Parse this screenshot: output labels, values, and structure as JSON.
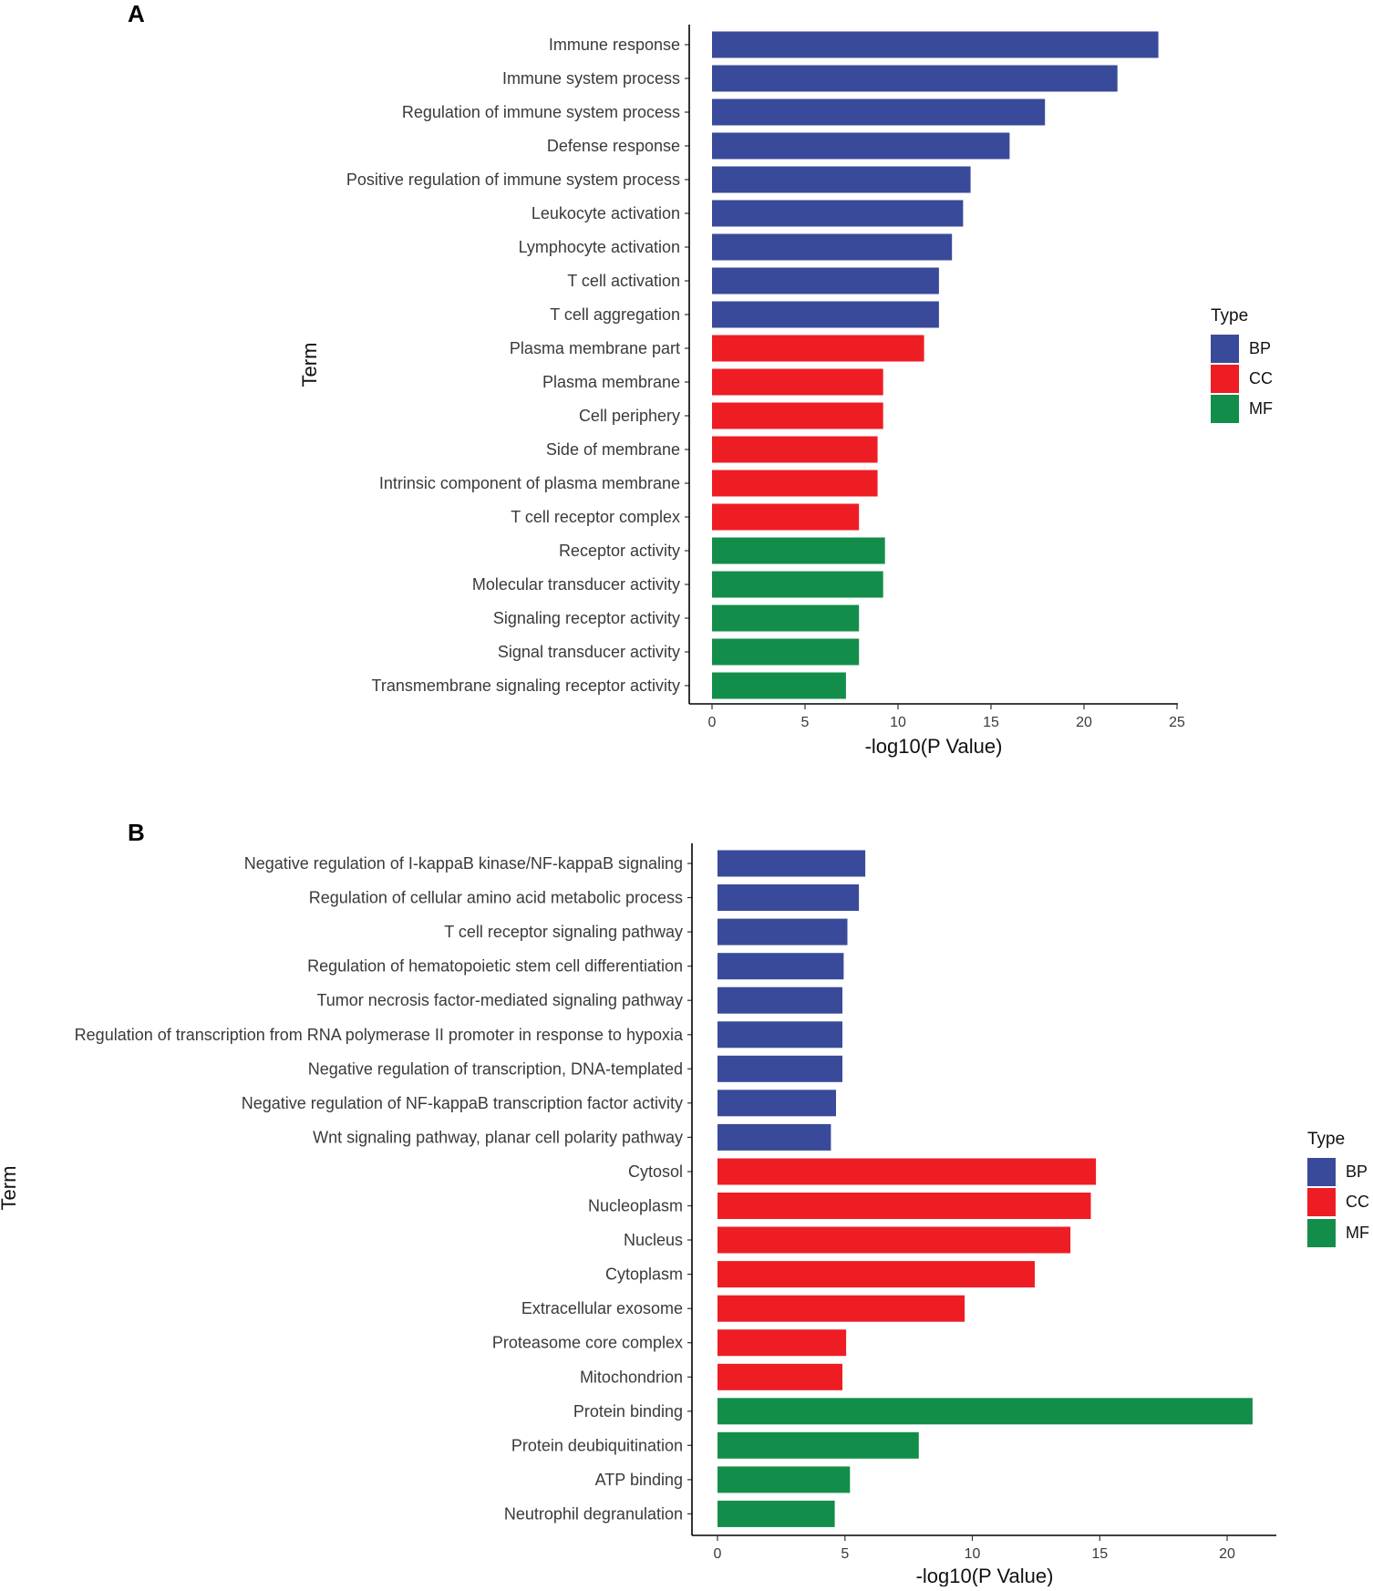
{
  "chart_data": [
    {
      "panel": "A",
      "type": "bar",
      "orientation": "horizontal",
      "xlabel": "-log10(P Value)",
      "ylabel": "Term",
      "xlim": [
        0,
        25
      ],
      "xticks": [
        0,
        5,
        10,
        15,
        20,
        25
      ],
      "legend": {
        "title": "Type",
        "entries": [
          "BP",
          "CC",
          "MF"
        ]
      },
      "categories": [
        "Immune response",
        "Immune system process",
        "Regulation of immune system process",
        "Defense response",
        "Positive regulation of immune system process",
        "Leukocyte activation",
        "Lymphocyte activation",
        "T cell activation",
        "T cell aggregation",
        "Plasma membrane part",
        "Plasma membrane",
        "Cell periphery",
        "Side of membrane",
        "Intrinsic component of plasma membrane",
        "T cell receptor complex",
        "Receptor activity",
        "Molecular transducer activity",
        "Signaling receptor activity",
        "Signal transducer activity",
        "Transmembrane signaling receptor activity"
      ],
      "values": [
        24.0,
        21.8,
        17.9,
        16.0,
        13.9,
        13.5,
        12.9,
        12.2,
        12.2,
        11.4,
        9.2,
        9.2,
        8.9,
        8.9,
        7.9,
        9.3,
        9.2,
        7.9,
        7.9,
        7.2
      ],
      "types": [
        "BP",
        "BP",
        "BP",
        "BP",
        "BP",
        "BP",
        "BP",
        "BP",
        "BP",
        "CC",
        "CC",
        "CC",
        "CC",
        "CC",
        "CC",
        "MF",
        "MF",
        "MF",
        "MF",
        "MF"
      ]
    },
    {
      "panel": "B",
      "type": "bar",
      "orientation": "horizontal",
      "xlabel": "-log10(P Value)",
      "ylabel": "Term",
      "xlim": [
        0,
        21
      ],
      "xticks": [
        0,
        5,
        10,
        15,
        20
      ],
      "legend": {
        "title": "Type",
        "entries": [
          "BP",
          "CC",
          "MF"
        ]
      },
      "categories": [
        "Negative regulation of I-kappaB kinase/NF-kappaB signaling",
        "Regulation of cellular amino acid metabolic process",
        "T cell receptor signaling pathway",
        "Regulation of hematopoietic stem cell differentiation",
        "Tumor necrosis factor-mediated signaling pathway",
        "Regulation of transcription from RNA polymerase II promoter in response to hypoxia",
        "Negative regulation of transcription, DNA-templated",
        "Negative regulation of NF-kappaB transcription factor activity",
        "Wnt signaling pathway, planar cell polarity pathway",
        "Cytosol",
        "Nucleoplasm",
        "Nucleus",
        "Cytoplasm",
        "Extracellular exosome",
        "Proteasome core complex",
        "Mitochondrion",
        "Protein binding",
        "Protein deubiquitination",
        "ATP binding",
        "Neutrophil degranulation"
      ],
      "values": [
        5.8,
        5.55,
        5.1,
        4.95,
        4.9,
        4.9,
        4.9,
        4.65,
        4.45,
        14.85,
        14.65,
        13.85,
        12.45,
        9.7,
        5.05,
        4.9,
        21.0,
        7.9,
        5.2,
        4.6
      ],
      "types": [
        "BP",
        "BP",
        "BP",
        "BP",
        "BP",
        "BP",
        "BP",
        "BP",
        "BP",
        "CC",
        "CC",
        "CC",
        "CC",
        "CC",
        "CC",
        "CC",
        "MF",
        "MF",
        "MF",
        "MF"
      ]
    }
  ],
  "colors": {
    "BP": "#3a4a9a",
    "CC": "#ee1d24",
    "MF": "#138e4a"
  }
}
